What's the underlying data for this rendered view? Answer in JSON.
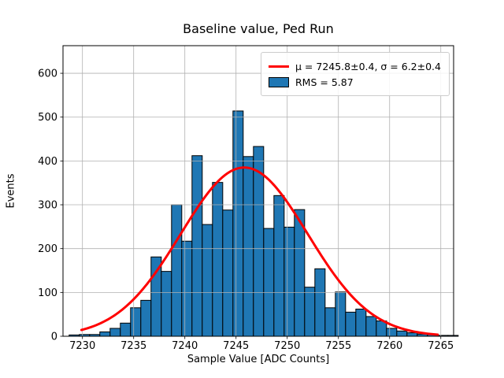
{
  "figure": {
    "title": "Baseline value, Ped Run"
  },
  "axes": {
    "xlabel": "Sample Value [ADC Counts]",
    "ylabel": "Events"
  },
  "legend": {
    "fit_label": "μ = 7245.8±0.4, σ = 6.2±0.4",
    "rms_label": "RMS = 5.87"
  },
  "chart_data": {
    "type": "bar",
    "subtype": "histogram",
    "title": "Baseline value, Ped Run",
    "xlabel": "Sample Value [ADC Counts]",
    "ylabel": "Events",
    "bin_centers": [
      7229,
      7230,
      7231,
      7232,
      7233,
      7234,
      7235,
      7236,
      7237,
      7238,
      7239,
      7240,
      7241,
      7242,
      7243,
      7244,
      7245,
      7246,
      7247,
      7248,
      7249,
      7250,
      7251,
      7252,
      7253,
      7254,
      7255,
      7256,
      7257,
      7258,
      7259,
      7260,
      7261,
      7262,
      7263,
      7264,
      7265,
      7266
    ],
    "counts": [
      3,
      4,
      4,
      10,
      18,
      30,
      65,
      82,
      181,
      148,
      300,
      217,
      412,
      255,
      351,
      288,
      514,
      410,
      433,
      246,
      321,
      249,
      289,
      112,
      154,
      65,
      101,
      55,
      62,
      45,
      35,
      18,
      12,
      8,
      5,
      4,
      2,
      2
    ],
    "bin_width": 1,
    "bin_edge_offset": -0.3,
    "xlim": [
      7228.1,
      7266.25
    ],
    "ylim": [
      0,
      663
    ],
    "xticks": [
      7230,
      7235,
      7240,
      7245,
      7250,
      7255,
      7260,
      7265
    ],
    "yticks": [
      0,
      100,
      200,
      300,
      400,
      500,
      600
    ],
    "grid": true,
    "grid_color": "#b0b0b0",
    "bar_color": "#1f77b4",
    "bar_edge_color": "#000000",
    "fit_curve": {
      "type": "gaussian",
      "amplitude": 385,
      "mu": 7245.8,
      "sigma": 6.2,
      "color": "#ff0000",
      "x_range": [
        7229.9,
        7264.7
      ]
    },
    "legend": {
      "position": "upper right",
      "entries": [
        {
          "swatch": "line",
          "color": "#ff0000",
          "label": "μ = 7245.8±0.4, σ = 6.2±0.4"
        },
        {
          "swatch": "patch",
          "color": "#1f77b4",
          "label": "RMS = 5.87"
        }
      ]
    }
  }
}
